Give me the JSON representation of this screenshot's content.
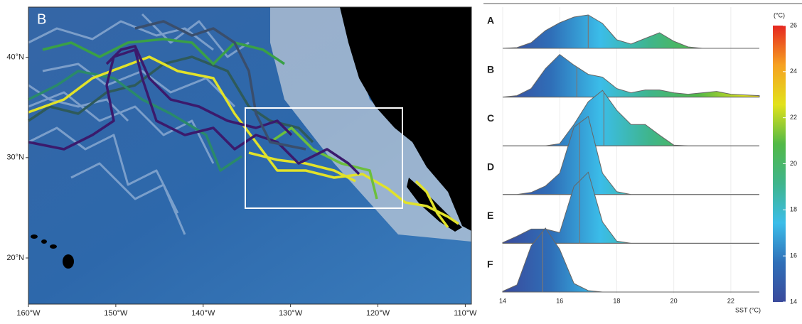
{
  "chart_data": [
    {
      "type": "map",
      "title": "B",
      "xlim": [
        -160,
        -109.3
      ],
      "ylim": [
        15.4,
        45
      ],
      "xticks": [
        {
          "value": -160,
          "label": "160°W"
        },
        {
          "value": -150,
          "label": "150°W"
        },
        {
          "value": -140,
          "label": "140°W"
        },
        {
          "value": -130,
          "label": "130°W"
        },
        {
          "value": -120,
          "label": "120°W"
        },
        {
          "value": -110,
          "label": "110°W"
        }
      ],
      "yticks": [
        {
          "value": 20,
          "label": "20°N"
        },
        {
          "value": 30,
          "label": "30°N"
        },
        {
          "value": 40,
          "label": "40°N"
        }
      ]
    },
    {
      "type": "ridgeline",
      "xlabel": "SST (°C)",
      "x": [
        14,
        14.5,
        15,
        15.5,
        16,
        16.5,
        17,
        17.5,
        18,
        18.5,
        19,
        19.5,
        20,
        20.5,
        21,
        21.5,
        22,
        22.5,
        23
      ],
      "xlim": [
        14,
        23
      ],
      "xticks": [
        14,
        16,
        18,
        20,
        22
      ],
      "grid": true,
      "series": [
        {
          "name": "A",
          "median": 17.0,
          "values": [
            0,
            0.01,
            0.08,
            0.25,
            0.36,
            0.44,
            0.47,
            0.35,
            0.12,
            0.06,
            0.14,
            0.22,
            0.1,
            0.02,
            0,
            0,
            0,
            0,
            0
          ]
        },
        {
          "name": "B",
          "median": 16.6,
          "values": [
            0,
            0.02,
            0.12,
            0.4,
            0.6,
            0.45,
            0.32,
            0.28,
            0.12,
            0.06,
            0.1,
            0.1,
            0.06,
            0.04,
            0.06,
            0.08,
            0.04,
            0.03,
            0.02
          ]
        },
        {
          "name": "C",
          "median": 17.55,
          "values": [
            0,
            0,
            0,
            0,
            0.03,
            0.3,
            0.62,
            0.78,
            0.5,
            0.3,
            0.3,
            0.15,
            0.01,
            0,
            0,
            0,
            0,
            0,
            0
          ]
        },
        {
          "name": "D",
          "median": 16.7,
          "values": [
            0,
            0,
            0.03,
            0.12,
            0.3,
            0.95,
            1.1,
            0.3,
            0.04,
            0,
            0,
            0,
            0,
            0,
            0,
            0,
            0,
            0,
            0
          ]
        },
        {
          "name": "E",
          "median": 16.7,
          "values": [
            0.01,
            0.1,
            0.2,
            0.2,
            0.15,
            0.8,
            1.0,
            0.3,
            0.03,
            0,
            0,
            0,
            0,
            0,
            0,
            0,
            0,
            0,
            0
          ]
        },
        {
          "name": "F",
          "median": 15.4,
          "values": [
            0.01,
            0.1,
            0.65,
            0.9,
            0.6,
            0.12,
            0.02,
            0,
            0,
            0,
            0,
            0,
            0,
            0,
            0,
            0,
            0,
            0,
            0
          ]
        }
      ]
    },
    {
      "type": "colorbar",
      "label": "(°C)",
      "lim": [
        14,
        26
      ],
      "ticks": [
        14,
        16,
        18,
        20,
        22,
        24,
        26
      ],
      "colors": [
        "#3a4a9c",
        "#2f6fb8",
        "#3bbde9",
        "#3fb58c",
        "#52b947",
        "#e2e21b",
        "#f6a121",
        "#e52721"
      ]
    }
  ]
}
